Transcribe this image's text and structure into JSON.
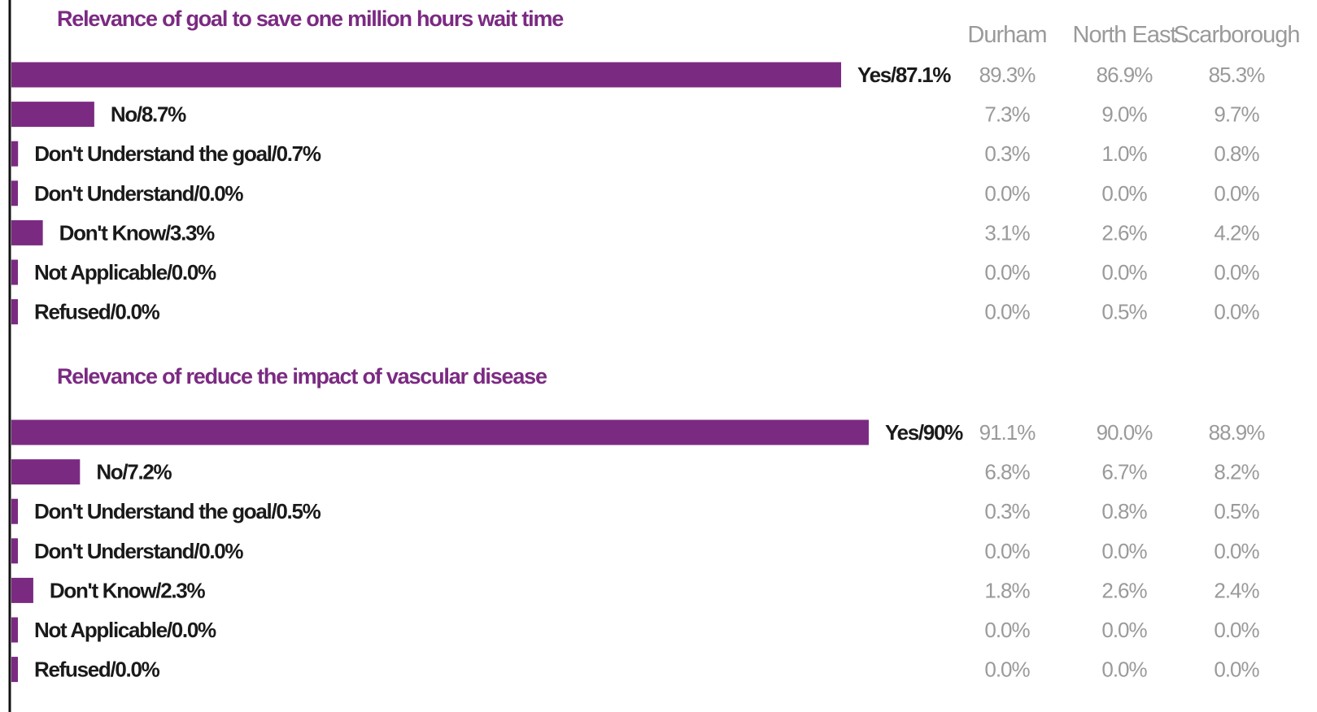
{
  "colors": {
    "bar": "#7b2a82",
    "title": "#7b2a82",
    "label": "#1a1a1a",
    "column_text": "#9a9a9a",
    "axis": "#111111"
  },
  "column_headers": [
    "Durham",
    "North East",
    "Scarborough"
  ],
  "chart_data": [
    {
      "type": "bar",
      "orientation": "horizontal",
      "title": "Relevance of goal to save one million hours wait time",
      "xlim": [
        0,
        100
      ],
      "categories": [
        "Yes",
        "No",
        "Don't Understand the goal",
        "Don't Understand",
        "Don't Know",
        "Not Applicable",
        "Refused"
      ],
      "bar_labels": [
        "Yes/87.1%",
        "No/8.7%",
        "Don't Understand the goal/0.7%",
        "Don't Understand/0.0%",
        "Don't Know/3.3%",
        "Not Applicable/0.0%",
        "Refused/0.0%"
      ],
      "values": [
        87.1,
        8.7,
        0.7,
        0.0,
        3.3,
        0.0,
        0.0
      ],
      "columns": {
        "Durham": [
          "89.3%",
          "7.3%",
          "0.3%",
          "0.0%",
          "3.1%",
          "0.0%",
          "0.0%"
        ],
        "North East": [
          "86.9%",
          "9.0%",
          "1.0%",
          "0.0%",
          "2.6%",
          "0.0%",
          "0.5%"
        ],
        "Scarborough": [
          "85.3%",
          "9.7%",
          "0.8%",
          "0.0%",
          "4.2%",
          "0.0%",
          "0.0%"
        ]
      }
    },
    {
      "type": "bar",
      "orientation": "horizontal",
      "title": "Relevance of reduce the impact of vascular disease",
      "xlim": [
        0,
        100
      ],
      "categories": [
        "Yes",
        "No",
        "Don't Understand the goal",
        "Don't Understand",
        "Don't Know",
        "Not Applicable",
        "Refused"
      ],
      "bar_labels": [
        "Yes/90%",
        "No/7.2%",
        "Don't Understand the goal/0.5%",
        "Don't Understand/0.0%",
        "Don't Know/2.3%",
        "Not Applicable/0.0%",
        "Refused/0.0%"
      ],
      "values": [
        90.0,
        7.2,
        0.5,
        0.0,
        2.3,
        0.0,
        0.0
      ],
      "columns": {
        "Durham": [
          "91.1%",
          "6.8%",
          "0.3%",
          "0.0%",
          "1.8%",
          "0.0%",
          "0.0%"
        ],
        "North East": [
          "90.0%",
          "6.7%",
          "0.8%",
          "0.0%",
          "2.6%",
          "0.0%",
          "0.0%"
        ],
        "Scarborough": [
          "88.9%",
          "8.2%",
          "0.5%",
          "0.0%",
          "2.4%",
          "0.0%",
          "0.0%"
        ]
      }
    }
  ]
}
